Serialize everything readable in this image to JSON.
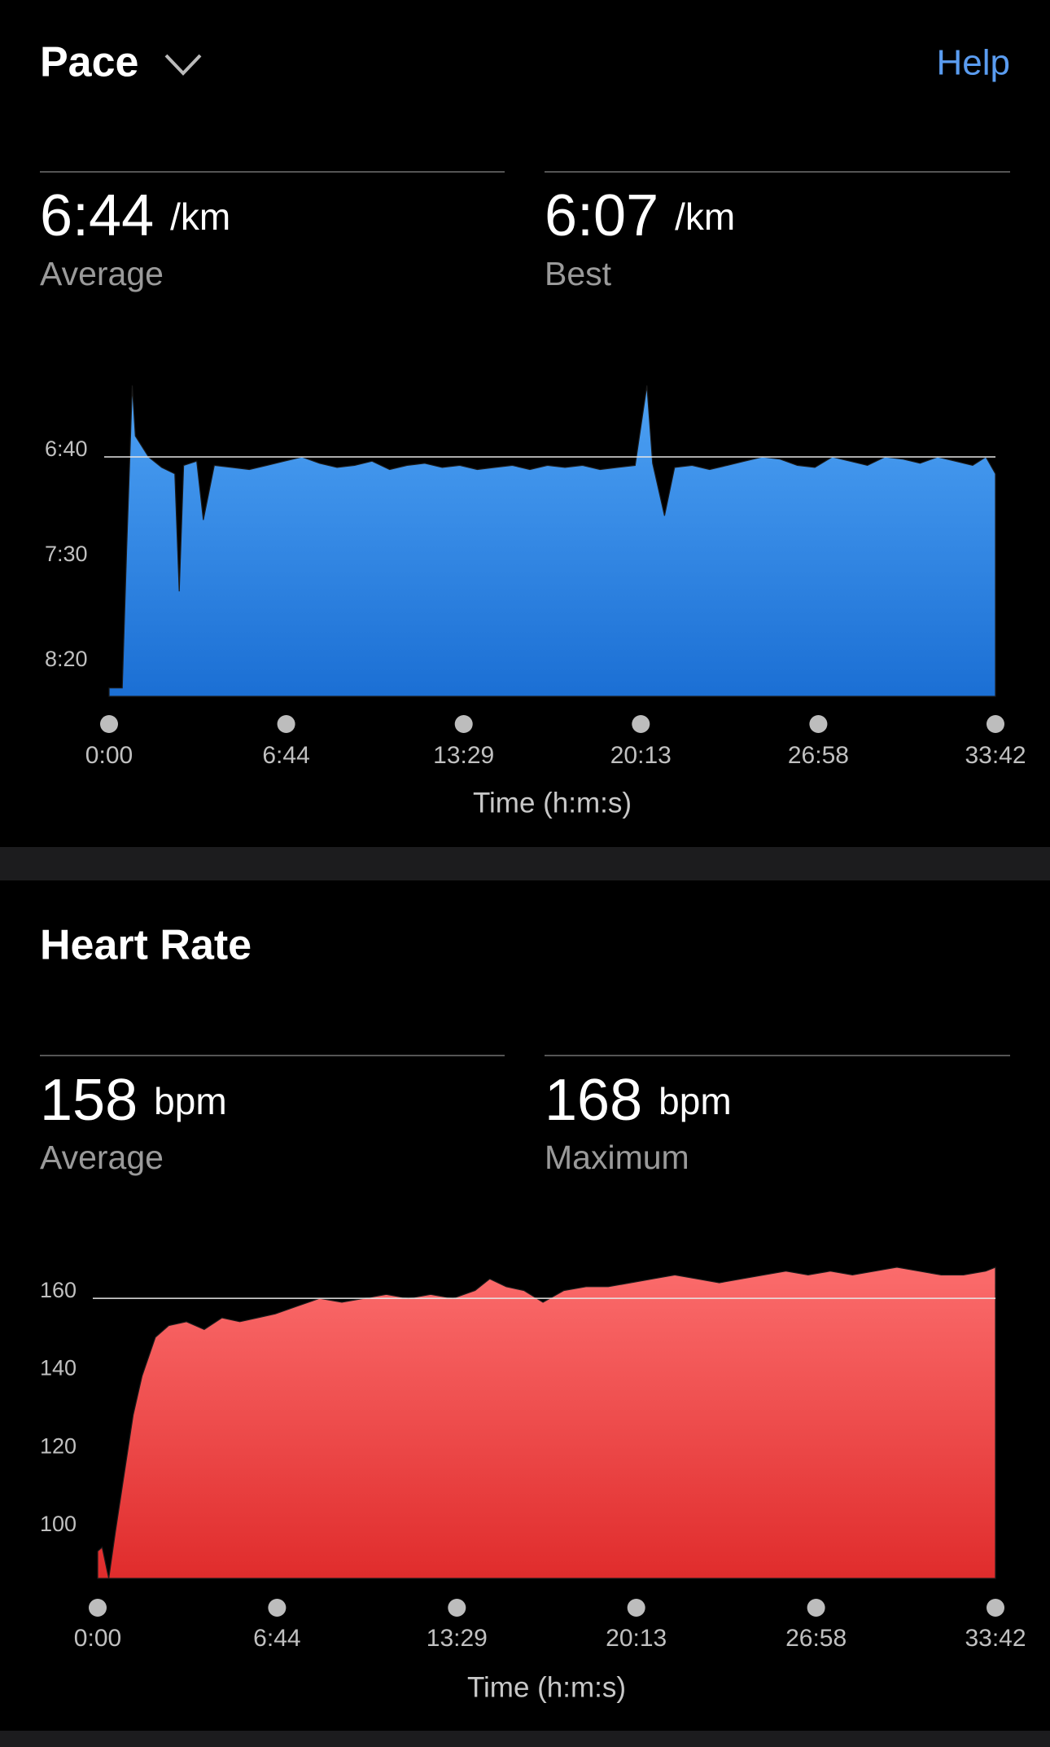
{
  "help": "Help",
  "chart_data": [
    {
      "type": "area",
      "title": "Pace",
      "x_label": "Time (h:m:s)",
      "stats": [
        {
          "value": "6:44",
          "unit": "/km",
          "label": "Average"
        },
        {
          "value": "6:07",
          "unit": "/km",
          "label": "Best"
        }
      ],
      "xlim": [
        0,
        2022
      ],
      "xticks": [
        {
          "value": 0,
          "label": "0:00"
        },
        {
          "value": 404,
          "label": "6:44"
        },
        {
          "value": 809,
          "label": "13:29"
        },
        {
          "value": 1213,
          "label": "20:13"
        },
        {
          "value": 1618,
          "label": "26:58"
        },
        {
          "value": 2022,
          "label": "33:42"
        }
      ],
      "ylim": [
        514,
        355
      ],
      "yticks": [
        {
          "value": 400,
          "label": "6:40"
        },
        {
          "value": 450,
          "label": "7:30"
        },
        {
          "value": 500,
          "label": "8:20"
        }
      ],
      "reference_line": 400,
      "x": [
        0,
        30,
        40,
        53,
        60,
        90,
        120,
        150,
        160,
        170,
        200,
        215,
        240,
        280,
        320,
        360,
        400,
        440,
        480,
        520,
        560,
        600,
        640,
        680,
        720,
        760,
        800,
        840,
        880,
        920,
        960,
        1000,
        1040,
        1080,
        1120,
        1160,
        1200,
        1227,
        1240,
        1267,
        1290,
        1330,
        1370,
        1410,
        1450,
        1490,
        1530,
        1570,
        1610,
        1650,
        1690,
        1730,
        1770,
        1810,
        1850,
        1890,
        1930,
        1970,
        2000,
        2022
      ],
      "series": [
        {
          "color": "#4c9ff2",
          "gradient": [
            "#4ea2f4",
            "#1b6fd4"
          ],
          "values": [
            510,
            510,
            445,
            366,
            390,
            400,
            405,
            408,
            464,
            404,
            402,
            430,
            404,
            405,
            406,
            404,
            402,
            400,
            403,
            405,
            404,
            402,
            406,
            404,
            403,
            405,
            404,
            406,
            405,
            404,
            406,
            404,
            405,
            404,
            406,
            405,
            404,
            366,
            403,
            428,
            405,
            404,
            406,
            404,
            402,
            400,
            401,
            404,
            405,
            400,
            402,
            404,
            400,
            401,
            403,
            400,
            402,
            404,
            400,
            408
          ]
        }
      ]
    },
    {
      "type": "area",
      "title": "Heart Rate",
      "x_label": "Time (h:m:s)",
      "stats": [
        {
          "value": "158",
          "unit": "bpm",
          "label": "Average"
        },
        {
          "value": "168",
          "unit": "bpm",
          "label": "Maximum"
        }
      ],
      "xlim": [
        0,
        2022
      ],
      "xticks": [
        {
          "value": 0,
          "label": "0:00"
        },
        {
          "value": 404,
          "label": "6:44"
        },
        {
          "value": 809,
          "label": "13:29"
        },
        {
          "value": 1213,
          "label": "20:13"
        },
        {
          "value": 1618,
          "label": "26:58"
        },
        {
          "value": 2022,
          "label": "33:42"
        }
      ],
      "ylim": [
        88,
        173
      ],
      "yticks": [
        100,
        120,
        140,
        160
      ],
      "reference_line": 160,
      "x": [
        0,
        10,
        25,
        40,
        60,
        80,
        100,
        130,
        160,
        200,
        240,
        280,
        320,
        360,
        400,
        450,
        500,
        550,
        600,
        650,
        700,
        750,
        800,
        850,
        883,
        920,
        960,
        1003,
        1050,
        1100,
        1150,
        1200,
        1250,
        1300,
        1350,
        1400,
        1450,
        1500,
        1550,
        1600,
        1650,
        1700,
        1750,
        1800,
        1850,
        1900,
        1950,
        2000,
        2022
      ],
      "series": [
        {
          "color": "#f96868",
          "gradient": [
            "#fb6c6c",
            "#e02c2c"
          ],
          "values": [
            95,
            96,
            88,
            100,
            115,
            130,
            140,
            150,
            153,
            154,
            152,
            155,
            154,
            155,
            156,
            158,
            160,
            159,
            160,
            161,
            160,
            161,
            160,
            162,
            165,
            163,
            162,
            159,
            162,
            163,
            163,
            164,
            165,
            166,
            165,
            164,
            165,
            166,
            167,
            166,
            167,
            166,
            167,
            168,
            167,
            166,
            166,
            167,
            168
          ]
        }
      ]
    }
  ]
}
